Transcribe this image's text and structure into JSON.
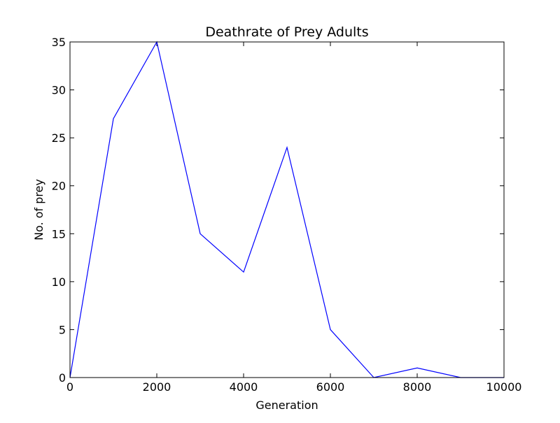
{
  "chart_data": {
    "type": "line",
    "title": "Deathrate of Prey Adults",
    "xlabel": "Generation",
    "ylabel": "No. of prey",
    "xlim": [
      0,
      10000
    ],
    "ylim": [
      0,
      35
    ],
    "xticks": [
      0,
      2000,
      4000,
      6000,
      8000,
      10000
    ],
    "yticks": [
      0,
      5,
      10,
      15,
      20,
      25,
      30,
      35
    ],
    "grid": false,
    "series": [
      {
        "color": "#0000ff",
        "x": [
          0,
          1000,
          2000,
          3000,
          4000,
          5000,
          6000,
          7000,
          8000,
          9000,
          10000
        ],
        "y": [
          0,
          27,
          35,
          15,
          11,
          24,
          5,
          0,
          1,
          0,
          0
        ]
      }
    ]
  }
}
